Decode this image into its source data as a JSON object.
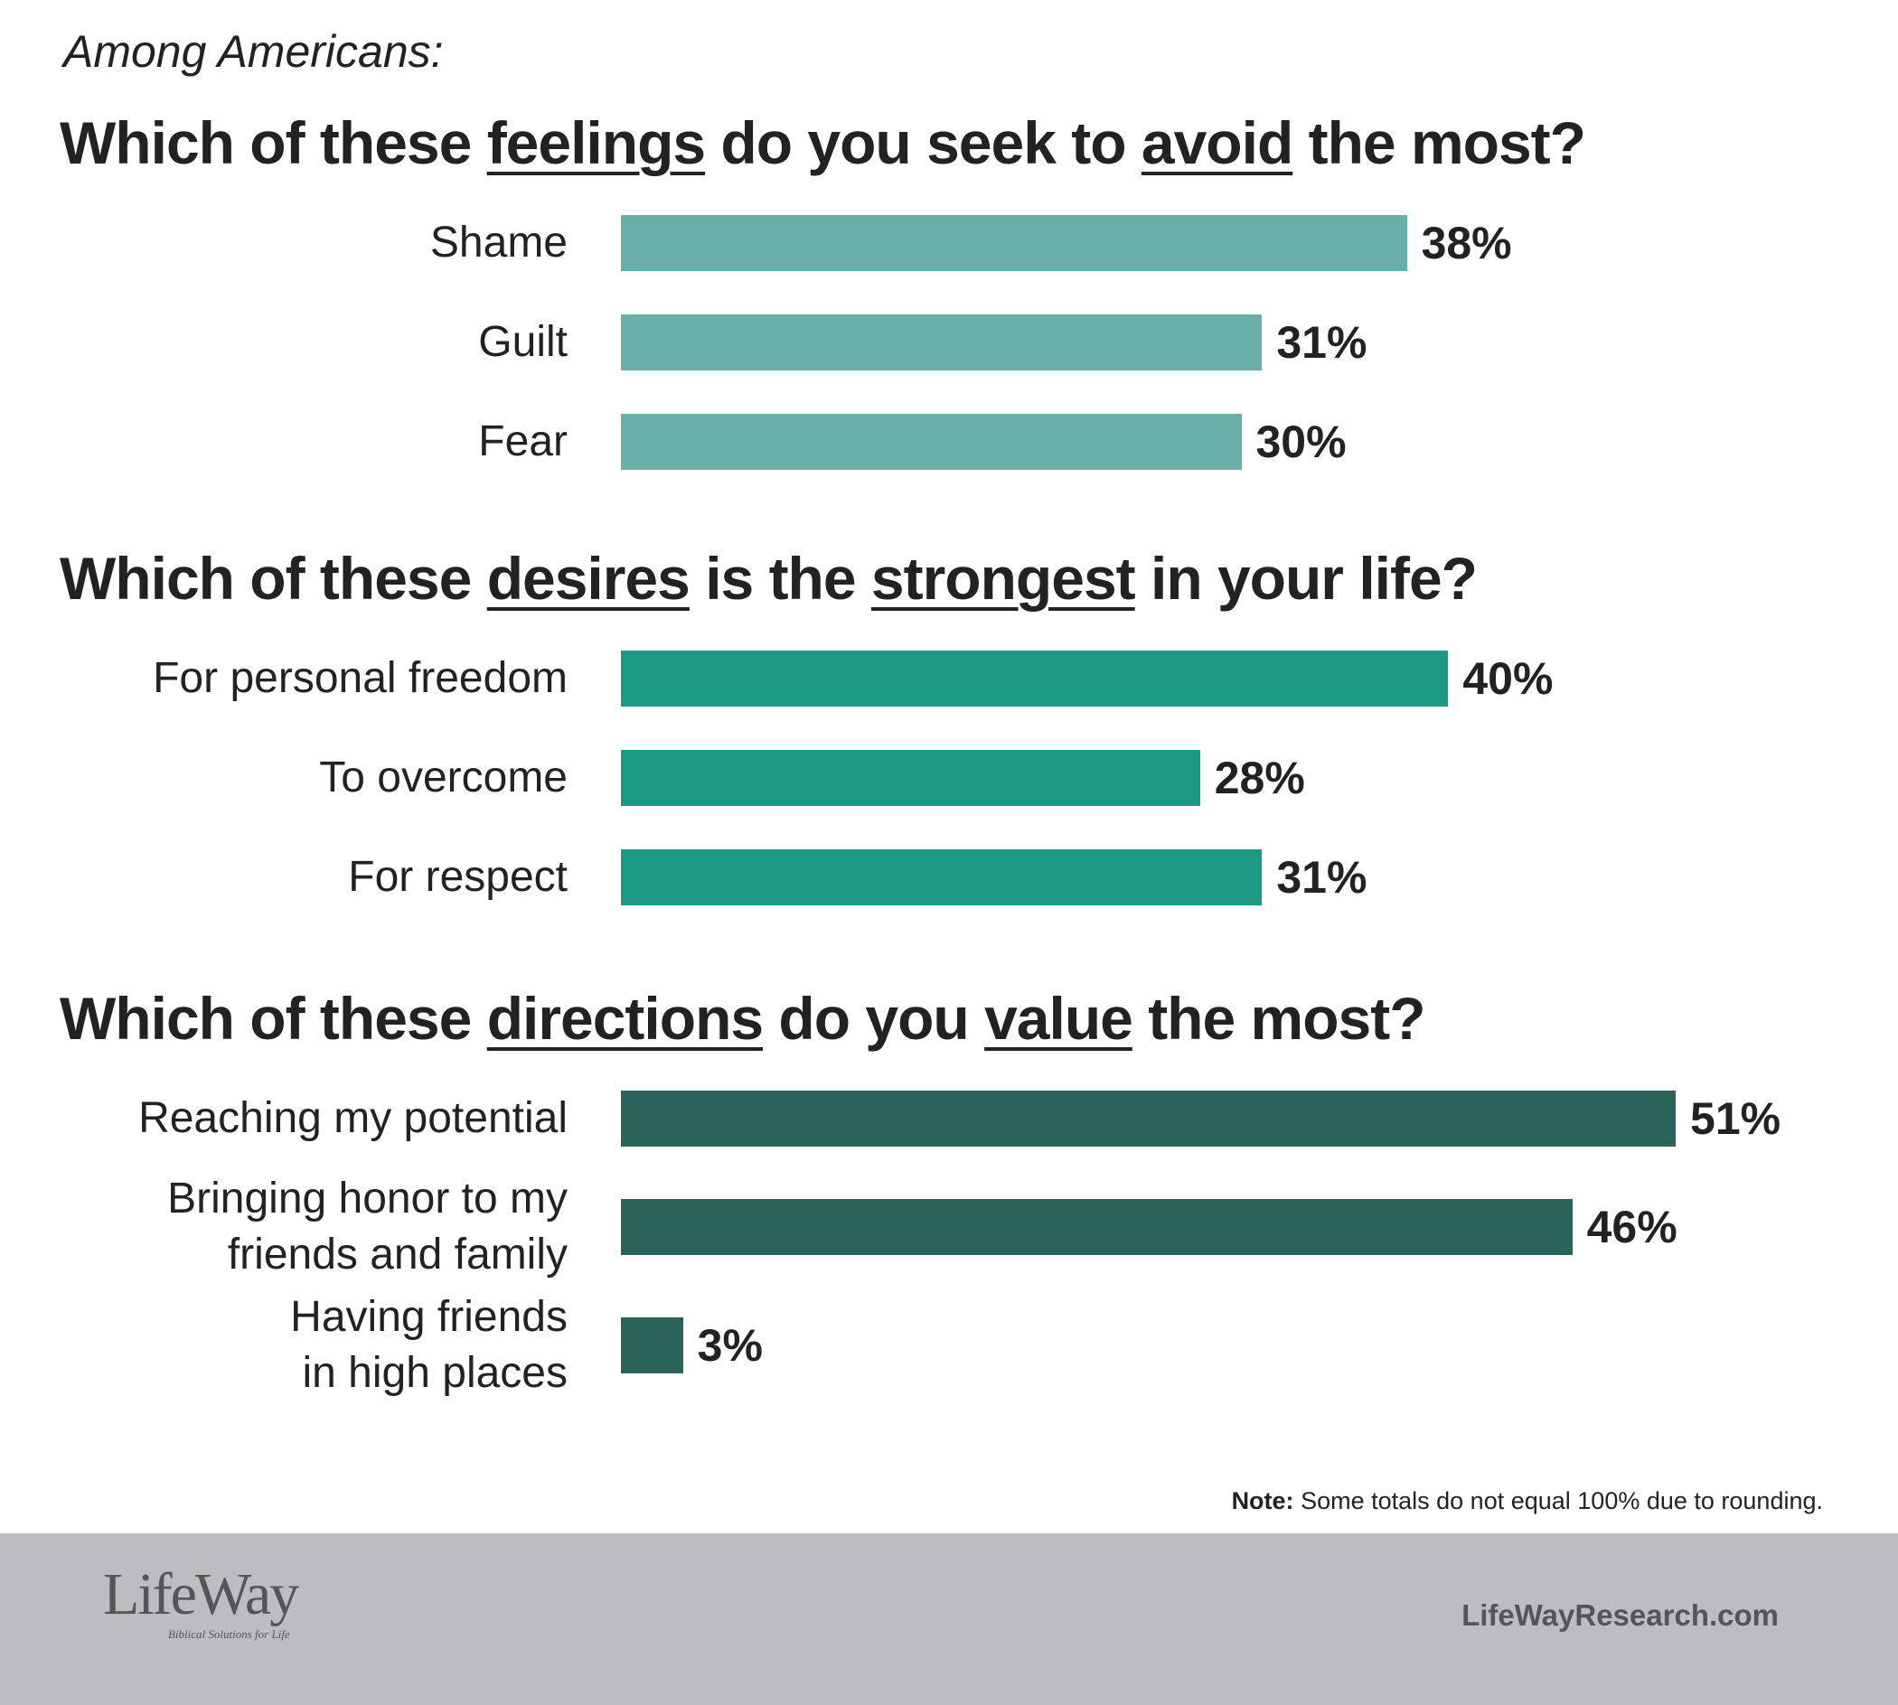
{
  "intro": "Among Americans:",
  "chart_data": [
    {
      "type": "bar",
      "orientation": "horizontal",
      "title": [
        {
          "text": "Which of these "
        },
        {
          "text": "feelings",
          "underline": true
        },
        {
          "text": " do you seek to "
        },
        {
          "text": "avoid",
          "underline": true
        },
        {
          "text": " the most?"
        }
      ],
      "categories": [
        "Shame",
        "Guilt",
        "Fear"
      ],
      "values": [
        38,
        31,
        30
      ],
      "value_labels": [
        "38%",
        "31%",
        "30%"
      ],
      "color": "#68afa9",
      "xlim": [
        0,
        60
      ]
    },
    {
      "type": "bar",
      "orientation": "horizontal",
      "title": [
        {
          "text": "Which of these "
        },
        {
          "text": "desires",
          "underline": true
        },
        {
          "text": " is the "
        },
        {
          "text": "strongest",
          "underline": true
        },
        {
          "text": " in your life?"
        }
      ],
      "categories": [
        "For personal freedom",
        "To overcome",
        "For respect"
      ],
      "values": [
        40,
        28,
        31
      ],
      "value_labels": [
        "40%",
        "28%",
        "31%"
      ],
      "color": "#1a9984",
      "xlim": [
        0,
        60
      ]
    },
    {
      "type": "bar",
      "orientation": "horizontal",
      "title": [
        {
          "text": "Which of these "
        },
        {
          "text": "directions",
          "underline": true
        },
        {
          "text": " do you "
        },
        {
          "text": "value",
          "underline": true
        },
        {
          "text": " the most?"
        }
      ],
      "categories": [
        "Reaching my potential",
        "Bringing honor to my\nfriends and family",
        "Having friends\nin high places"
      ],
      "values": [
        51,
        46,
        3
      ],
      "value_labels": [
        "51%",
        "46%",
        "3%"
      ],
      "color": "#2a635a",
      "xlim": [
        0,
        60
      ]
    }
  ],
  "note": {
    "label": "Note:",
    "text": "Some totals do not equal 100% due to rounding."
  },
  "footer": {
    "logo": "LifeWay",
    "tagline": "Biblical Solutions for Life",
    "url": "LifeWayResearch.com"
  }
}
